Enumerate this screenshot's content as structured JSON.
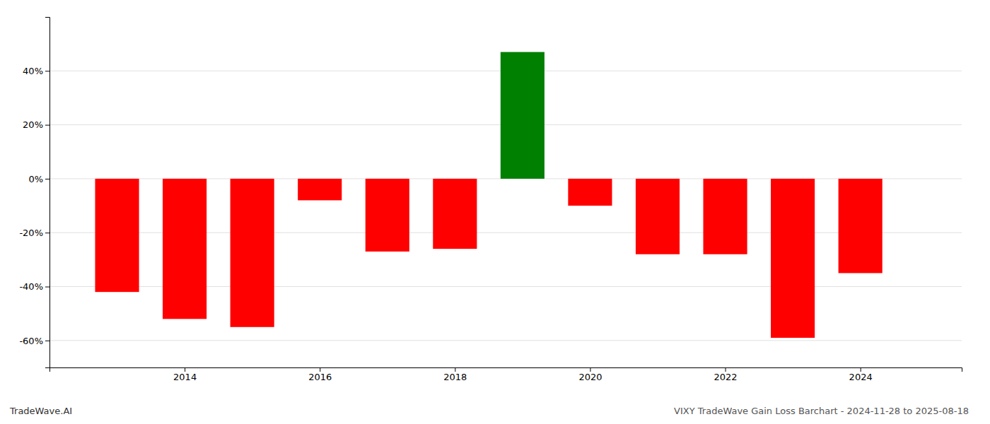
{
  "chart_data": {
    "type": "bar",
    "title": "VIXY TradeWave Gain Loss Barchart - 2024-11-28 to 2025-08-18",
    "annotations": [
      "TradeWave.AI"
    ],
    "x": [
      2013,
      2014,
      2015,
      2016,
      2017,
      2018,
      2019,
      2020,
      2021,
      2022,
      2023,
      2024
    ],
    "values": [
      -42,
      -52,
      -55,
      -8,
      -27,
      -26,
      47,
      -10,
      -28,
      -28,
      -59,
      -35
    ],
    "colors": [
      "#ff0000",
      "#ff0000",
      "#ff0000",
      "#ff0000",
      "#ff0000",
      "#ff0000",
      "#008000",
      "#ff0000",
      "#ff0000",
      "#ff0000",
      "#ff0000",
      "#ff0000"
    ],
    "xlim": [
      2012.0,
      2025.5
    ],
    "xticks": [
      2014,
      2016,
      2018,
      2020,
      2022,
      2024
    ],
    "ylim": [
      -70,
      60
    ],
    "yticks": [
      {
        "value": -60,
        "label": "-60%"
      },
      {
        "value": -40,
        "label": "-40%"
      },
      {
        "value": -20,
        "label": "-20%"
      },
      {
        "value": 0,
        "label": "0%"
      },
      {
        "value": 20,
        "label": "20%"
      },
      {
        "value": 40,
        "label": "40%"
      }
    ],
    "grid": "y"
  }
}
